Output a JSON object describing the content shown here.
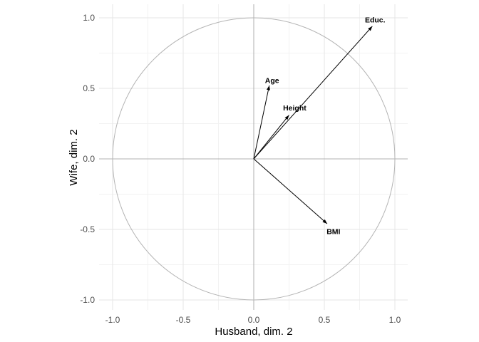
{
  "chart_data": {
    "type": "scatter",
    "variant": "correlation-circle-variable-plot",
    "title": "",
    "xlabel": "Husband, dim. 2",
    "ylabel": "Wife, dim. 2",
    "xlim": [
      -1.096,
      1.091
    ],
    "ylim": [
      -1.071,
      1.096
    ],
    "x_ticks": {
      "values": [
        -1.0,
        -0.5,
        0.0,
        0.5,
        1.0
      ],
      "labels": [
        "-1.0",
        "-0.5",
        "0.0",
        "0.5",
        "1.0"
      ]
    },
    "y_ticks": {
      "values": [
        -1.0,
        -0.5,
        0.0,
        0.5,
        1.0
      ],
      "labels": [
        "-1.0",
        "-0.5",
        "0.0",
        "0.5",
        "1.0"
      ]
    },
    "minor_tick_values": [
      -0.75,
      -0.25,
      0.25,
      0.75
    ],
    "grid": true,
    "legend": "none",
    "zero_lines": true,
    "unit_circle": {
      "cx": 0,
      "cy": 0,
      "r": 1
    },
    "series": [
      {
        "name": "Age",
        "x": 0.11,
        "y": 0.52,
        "label_x": 0.13,
        "label_y": 0.555
      },
      {
        "name": "Height",
        "x": 0.25,
        "y": 0.31,
        "label_x": 0.29,
        "label_y": 0.36
      },
      {
        "name": "Educ.",
        "x": 0.84,
        "y": 0.94,
        "label_x": 0.86,
        "label_y": 0.985
      },
      {
        "name": "BMI",
        "x": 0.52,
        "y": -0.46,
        "label_x": 0.565,
        "label_y": -0.515
      }
    ],
    "colors": {
      "background": "#ffffff",
      "grid_major": "#e5e5e5",
      "grid_minor": "#f2f2f2",
      "zero_line": "#b0b0b0",
      "circle": "#b4b4b4",
      "arrow": "#000000",
      "variable_label": "#000000",
      "tick_label": "#4d4d4d",
      "axis_title": "#000000"
    }
  }
}
